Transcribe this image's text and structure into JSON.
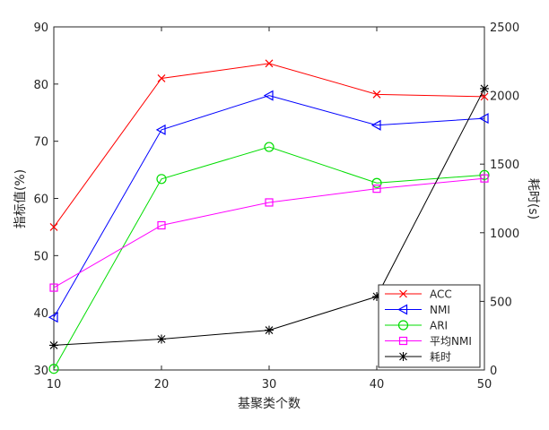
{
  "chart_data": {
    "type": "line",
    "title": "",
    "xlabel": "基聚类个数",
    "ylabel": "指标值(%)",
    "ylabel_right": "耗时(s)",
    "x": [
      10,
      20,
      30,
      40,
      50
    ],
    "xlim": [
      10,
      50
    ],
    "xticks": [
      10,
      20,
      30,
      40,
      50
    ],
    "ylim": [
      30,
      90
    ],
    "yticks": [
      30,
      40,
      50,
      60,
      70,
      80,
      90
    ],
    "ylim_right": [
      0,
      2500
    ],
    "yticks_right": [
      0,
      500,
      1000,
      1500,
      2000,
      2500
    ],
    "grid": false,
    "legend_position": "bottom-right",
    "series": [
      {
        "name": "ACC",
        "axis": "left",
        "color": "#ff0000",
        "marker": "x",
        "values": [
          55.0,
          81.0,
          83.6,
          78.2,
          77.8
        ]
      },
      {
        "name": "NMI",
        "axis": "left",
        "color": "#0000ff",
        "marker": "triangle-left",
        "values": [
          39.2,
          72.0,
          78.0,
          72.8,
          74.0
        ]
      },
      {
        "name": "ARI",
        "axis": "left",
        "color": "#00dd00",
        "marker": "circle",
        "values": [
          30.2,
          63.4,
          69.0,
          62.7,
          64.1
        ]
      },
      {
        "name": "平均NMI",
        "axis": "left",
        "color": "#ff00ff",
        "marker": "square",
        "values": [
          44.4,
          55.3,
          59.3,
          61.7,
          63.5
        ]
      },
      {
        "name": "耗时",
        "axis": "right",
        "color": "#000000",
        "marker": "asterisk",
        "values": [
          180,
          225,
          290,
          535,
          2050
        ]
      }
    ]
  }
}
